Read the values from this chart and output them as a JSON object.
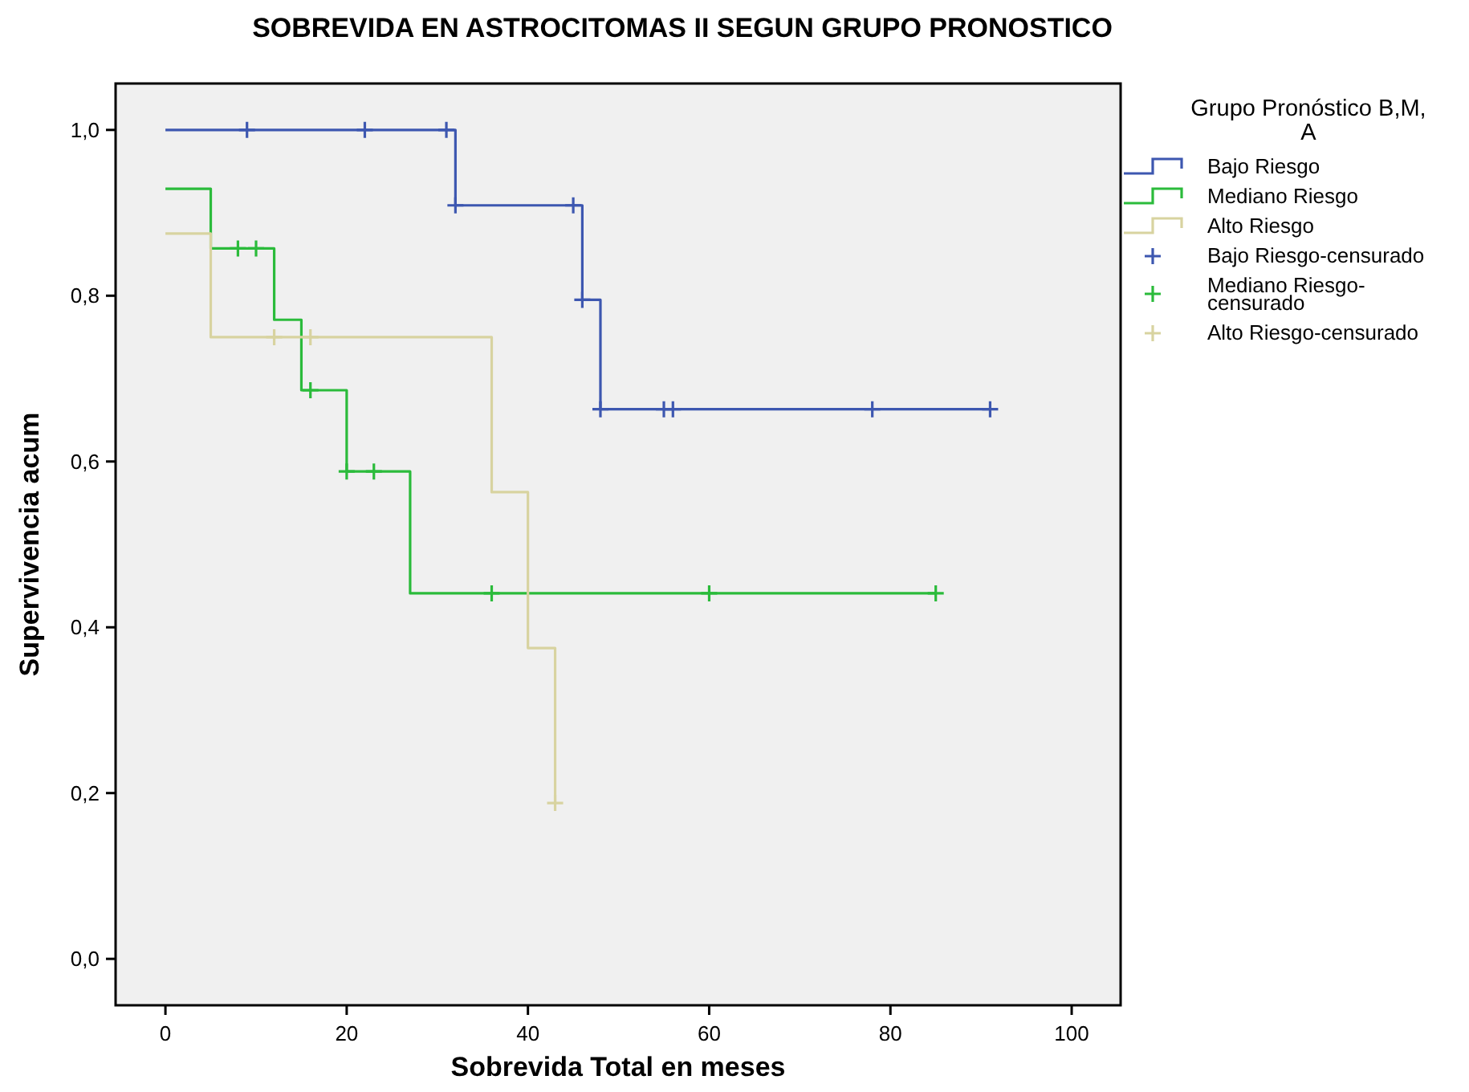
{
  "chart_data": {
    "type": "step",
    "title": "SOBREVIDA EN ASTROCITOMAS II SEGUN GRUPO PRONOSTICO",
    "xlabel": "Sobrevida Total en meses",
    "ylabel": "Supervivencia acum",
    "legend_title": "Grupo Pronóstico B,M, A",
    "legend": "right",
    "grid": false,
    "xlim": [
      -5.5,
      105.4
    ],
    "xticks": [
      0,
      20,
      40,
      60,
      80,
      100
    ],
    "ylim": [
      -0.056,
      1.056
    ],
    "yticks": [
      {
        "value": 0,
        "label": "0,0"
      },
      {
        "value": 0.2,
        "label": "0,2"
      },
      {
        "value": 0.4,
        "label": "0,4"
      },
      {
        "value": 0.6,
        "label": "0,6"
      },
      {
        "value": 0.8,
        "label": "0,8"
      },
      {
        "value": 1,
        "label": "1,0"
      }
    ],
    "series": [
      {
        "name": "Bajo Riesgo",
        "color": "#3d57b0",
        "x": [
          0,
          32,
          46,
          48,
          91
        ],
        "values": [
          1,
          0.909,
          0.795,
          0.663,
          0.663
        ]
      },
      {
        "name": "Mediano Riesgo",
        "color": "#2bbb3b",
        "x": [
          0,
          5,
          12,
          15,
          20,
          27,
          85
        ],
        "values": [
          0.929,
          0.857,
          0.771,
          0.686,
          0.588,
          0.441,
          0.441
        ]
      },
      {
        "name": "Alto Riesgo",
        "color": "#d8d3a0",
        "x": [
          0,
          5,
          36,
          40,
          43
        ],
        "values": [
          0.875,
          0.75,
          0.563,
          0.375,
          0.188
        ]
      },
      {
        "name": "Bajo Riesgo-censurado",
        "type": "scatter",
        "color": "#3d57b0",
        "marker": "cross",
        "x": [
          9,
          22,
          31,
          32,
          45,
          46,
          48,
          55,
          56,
          78,
          91
        ],
        "values": [
          1,
          1,
          1,
          0.909,
          0.909,
          0.795,
          0.663,
          0.663,
          0.663,
          0.663,
          0.663
        ]
      },
      {
        "name": "Mediano Riesgo-censurado",
        "type": "scatter",
        "color": "#2bbb3b",
        "marker": "cross",
        "x": [
          8,
          10,
          16,
          20,
          23,
          36,
          60,
          85
        ],
        "values": [
          0.857,
          0.857,
          0.686,
          0.588,
          0.588,
          0.441,
          0.441,
          0.441
        ]
      },
      {
        "name": "Alto Riesgo-censurado",
        "type": "scatter",
        "color": "#d8d3a0",
        "marker": "cross",
        "x": [
          12,
          16,
          43
        ],
        "values": [
          0.75,
          0.75,
          0.188
        ]
      }
    ]
  }
}
